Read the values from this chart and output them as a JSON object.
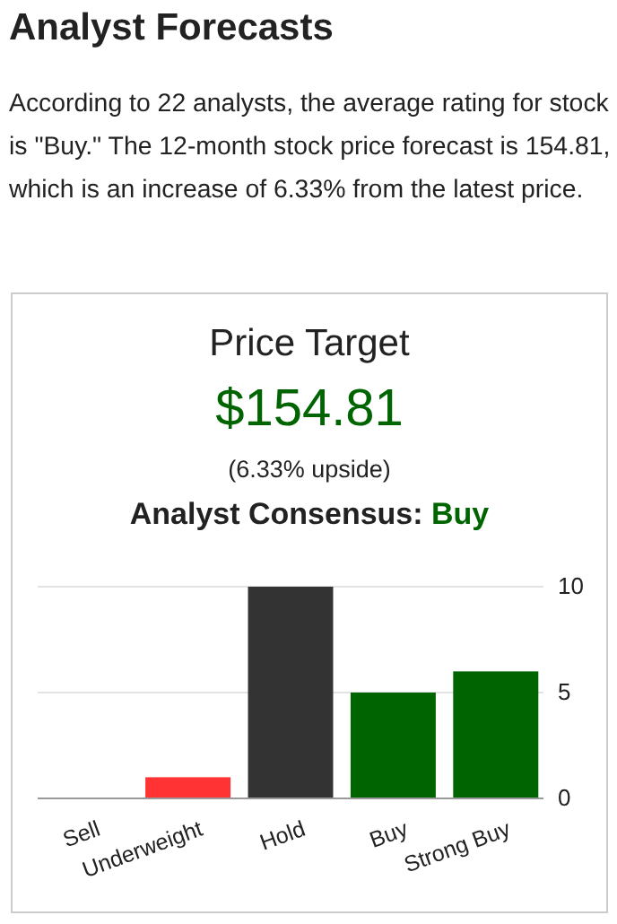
{
  "chart_data": {
    "type": "bar",
    "title": "Price Target",
    "annotations": [
      "Analyst Forecasts",
      "According to 22 analysts, the average rating for stock is \"Buy.\" The 12-month stock price forecast is 154.81, which is an increase of 6.33% from the latest price.",
      "$154.81",
      "(6.33% upside)",
      "Analyst Consensus:",
      "Buy"
    ],
    "categories": [
      "Sell",
      "Underweight",
      "Hold",
      "Buy",
      "Strong Buy"
    ],
    "values": [
      0,
      1,
      10,
      5,
      6
    ],
    "colors": [
      "#ff3333",
      "#ff3333",
      "#333333",
      "#006400",
      "#006400"
    ],
    "ylim": [
      0,
      10
    ],
    "yticks": [
      0,
      5,
      10
    ],
    "grid": "y"
  }
}
